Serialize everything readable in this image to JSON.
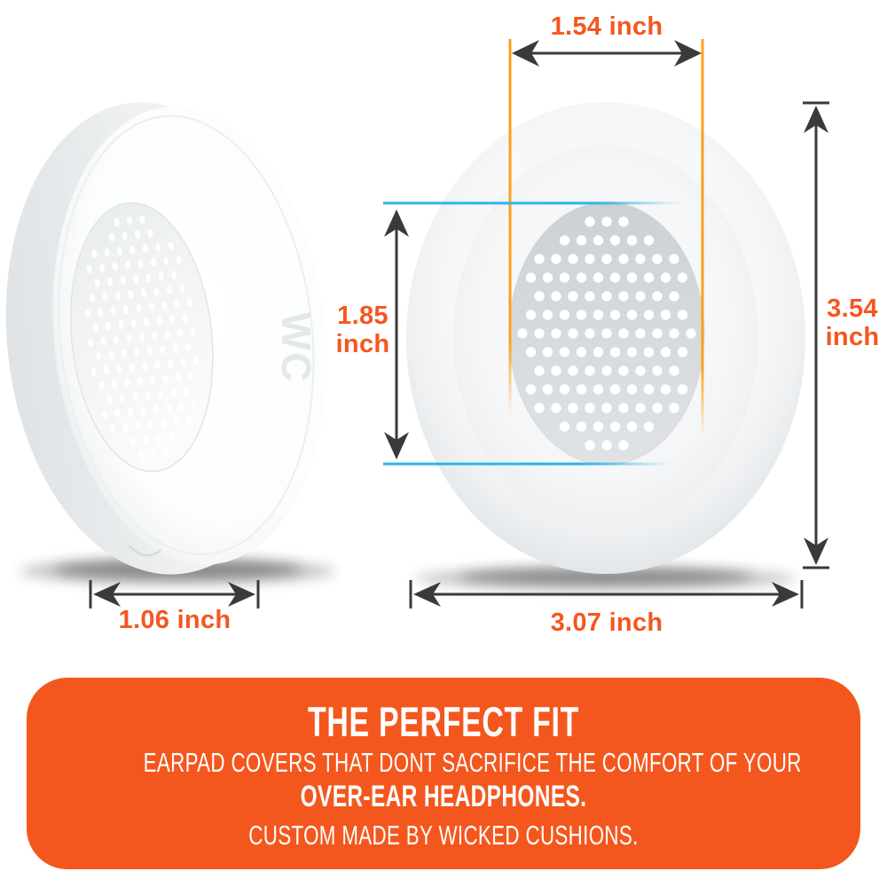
{
  "measurements": {
    "inner_width": "1.54 inch",
    "inner_height_line1": "1.85",
    "inner_height_line2": "inch",
    "outer_height_line1": "3.54",
    "outer_height_line2": "inch",
    "pad_depth": "1.06 inch",
    "outer_width": "3.07 inch"
  },
  "banner": {
    "title": "THE PERFECT FIT",
    "subtitle": "EARPAD COVERS THAT DONT SACRIFICE THE COMFORT OF YOUR",
    "subtitle_strong": "OVER-EAR HEADPHONES.",
    "footer": "CUSTOM MADE BY WICKED CUSHIONS."
  },
  "earpad": {
    "embossed_logo": "WC"
  },
  "colors": {
    "accent_orange": "#f4571d",
    "dimension_text_orange": "#f4571f",
    "guide_amber": "#f9a11b",
    "guide_cyan": "#2ab6e8",
    "arrow_dark": "#3a3a3a"
  }
}
